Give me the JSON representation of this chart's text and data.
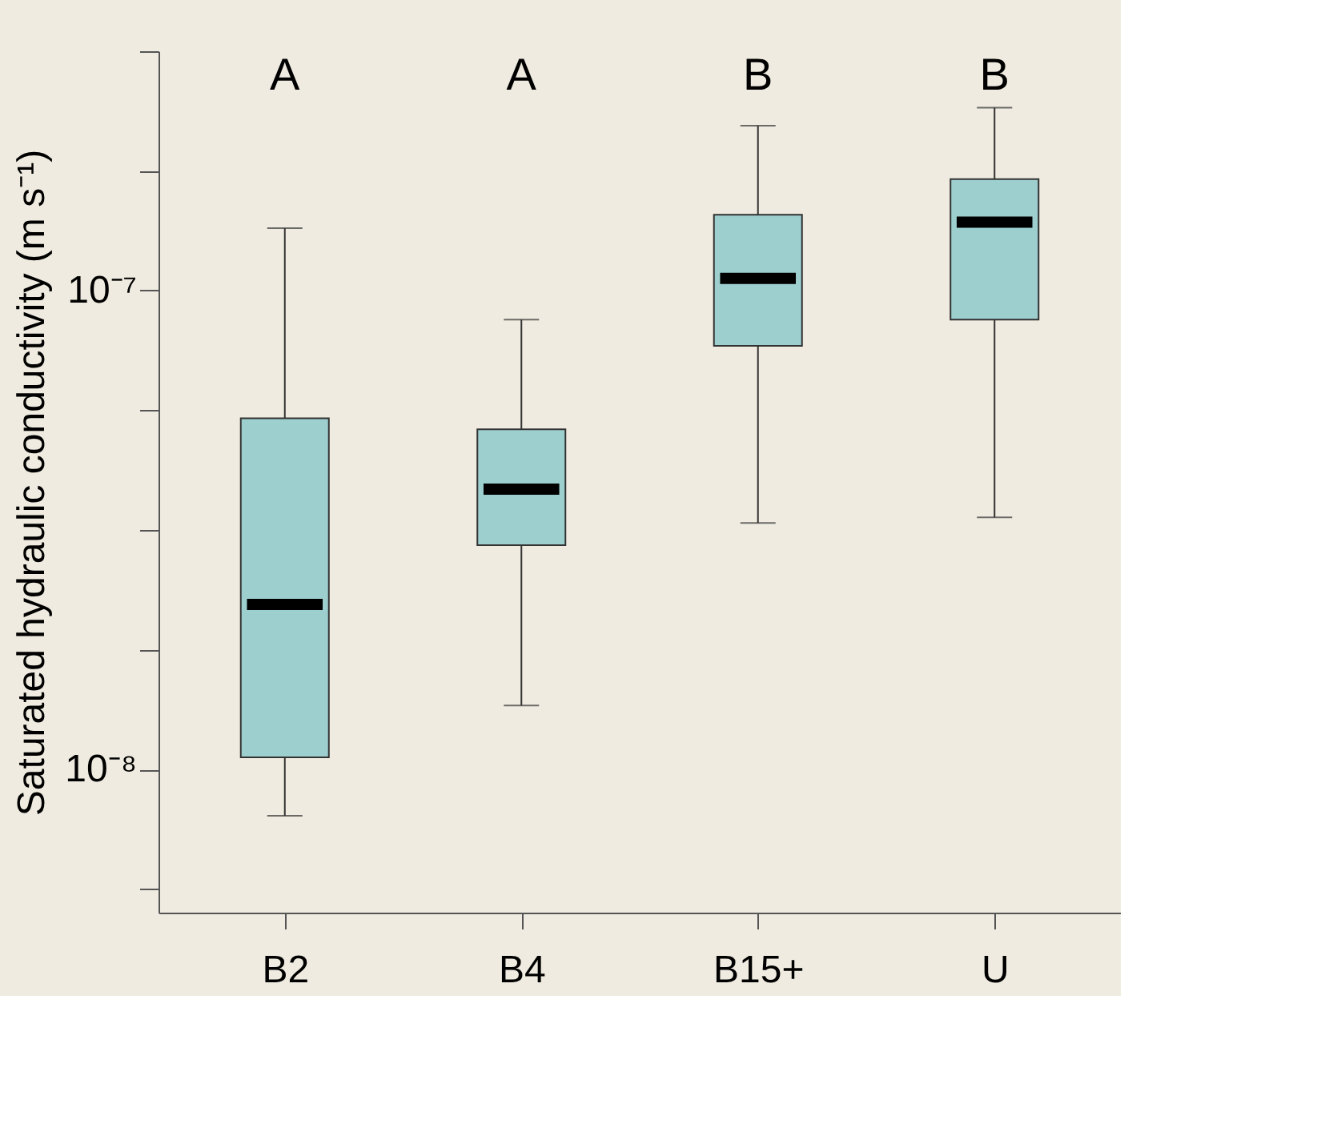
{
  "chart_data": {
    "type": "box",
    "ylabel": "Saturated hydraulic conductivity (m s⁻¹)",
    "categories": [
      "B2",
      "B4",
      "B15+",
      "U"
    ],
    "color": "#9ecfcf",
    "boxes": [
      {
        "low": 8e-09,
        "q1": 1.06e-08,
        "median": 2.21e-08,
        "q3": 5.41e-08,
        "high": 1.35e-07
      },
      {
        "low": 1.36e-08,
        "q1": 2.94e-08,
        "median": 3.85e-08,
        "q3": 5.13e-08,
        "high": 8.7e-08
      },
      {
        "low": 3.27e-08,
        "q1": 7.67e-08,
        "median": 1.06e-07,
        "q3": 1.44e-07,
        "high": 2.21e-07
      },
      {
        "low": 3.36e-08,
        "q1": 8.7e-08,
        "median": 1.39e-07,
        "q3": 1.71e-07,
        "high": 2.41e-07
      }
    ],
    "log": true,
    "ylim": [
      5.02e-09,
      3.162e-07
    ],
    "yticks": [
      {
        "value": 5.623e-09,
        "label": null
      },
      {
        "value": 1e-08,
        "label": "10⁻⁸"
      },
      {
        "value": 1.778e-08,
        "label": null
      },
      {
        "value": 3.162e-08,
        "label": null
      },
      {
        "value": 5.623e-08,
        "label": null
      },
      {
        "value": 1e-07,
        "label": "10⁻⁷"
      },
      {
        "value": 1.778e-07,
        "label": null
      },
      {
        "value": 3.162e-07,
        "label": null
      }
    ],
    "annotations": [
      "A",
      "A",
      "B",
      "B"
    ],
    "grid": false
  }
}
